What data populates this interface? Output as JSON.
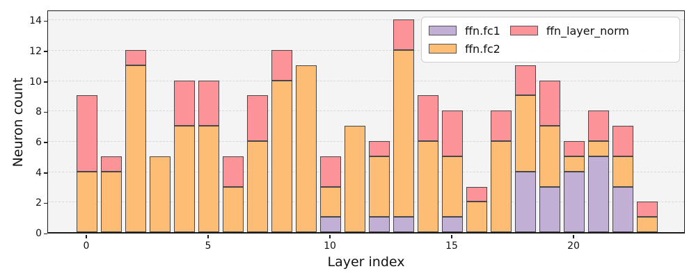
{
  "chart_data": {
    "type": "bar",
    "stacked": true,
    "title": "",
    "xlabel": "Layer index",
    "ylabel": "Neuron count",
    "x": [
      0,
      1,
      2,
      3,
      4,
      5,
      6,
      7,
      8,
      9,
      10,
      11,
      12,
      13,
      14,
      15,
      16,
      17,
      18,
      19,
      20,
      21,
      22,
      23
    ],
    "series": [
      {
        "name": "ffn.fc1",
        "color": "#c1afd5",
        "values": [
          0,
          0,
          0,
          0,
          0,
          0,
          0,
          0,
          0,
          0,
          1,
          0,
          1,
          1,
          0,
          1,
          0,
          0,
          4,
          3,
          4,
          5,
          3,
          0
        ]
      },
      {
        "name": "ffn.fc2",
        "color": "#fdbd74",
        "values": [
          4,
          4,
          11,
          5,
          7,
          7,
          3,
          6,
          10,
          11,
          2,
          7,
          4,
          11,
          6,
          4,
          2,
          6,
          5,
          4,
          1,
          1,
          2,
          1
        ]
      },
      {
        "name": "ffn_layer_norm",
        "color": "#fc9398",
        "values": [
          5,
          1,
          1,
          0,
          3,
          3,
          2,
          3,
          2,
          0,
          2,
          0,
          1,
          2,
          3,
          3,
          1,
          2,
          2,
          3,
          1,
          2,
          2,
          1
        ]
      }
    ],
    "totals": [
      9,
      5,
      12,
      5,
      10,
      10,
      5,
      9,
      12,
      11,
      5,
      7,
      6,
      14,
      9,
      8,
      3,
      8,
      11,
      10,
      6,
      8,
      7,
      2
    ],
    "yticks": [
      0,
      2,
      4,
      6,
      8,
      10,
      12,
      14
    ],
    "xticks": [
      0,
      5,
      10,
      15,
      20
    ],
    "ylim": [
      0,
      14.7
    ],
    "grid": true,
    "legend_position": "upper right",
    "style": {
      "bar_edge_color": "#474747",
      "plot_background": "#f4f4f4",
      "grid_color": "#d7d7d7",
      "spine_color": "#1a1a1a"
    }
  }
}
